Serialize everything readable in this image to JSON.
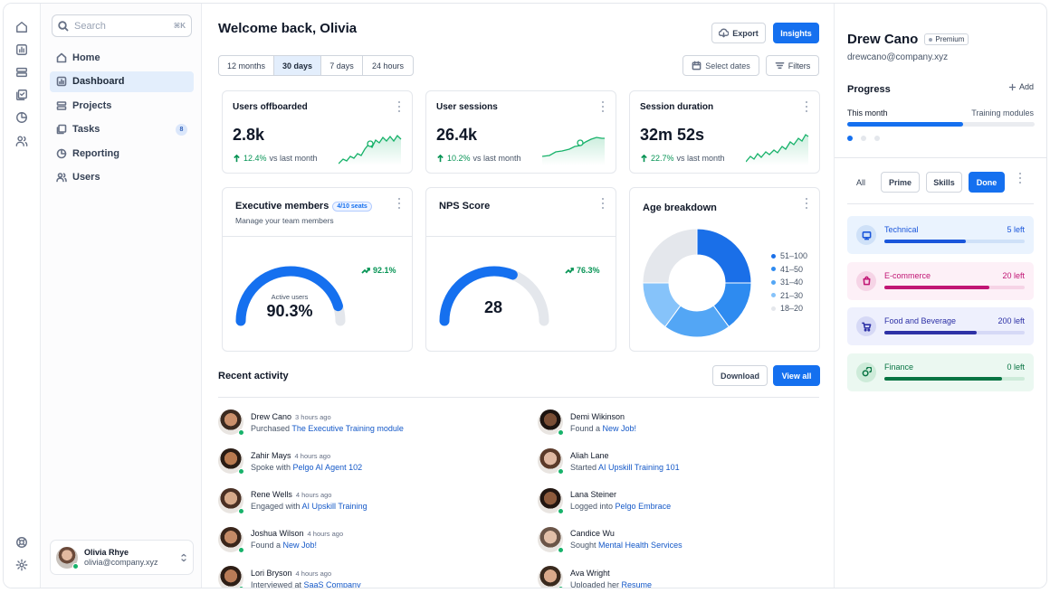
{
  "search": {
    "placeholder": "Search",
    "shortcut": "⌘K"
  },
  "nav": [
    {
      "label": "Home",
      "icon": "home-icon"
    },
    {
      "label": "Dashboard",
      "icon": "bar-chart-icon",
      "active": true
    },
    {
      "label": "Projects",
      "icon": "layers-icon"
    },
    {
      "label": "Tasks",
      "icon": "check-square-icon",
      "count": "8"
    },
    {
      "label": "Reporting",
      "icon": "pie-chart-icon"
    },
    {
      "label": "Users",
      "icon": "users-icon"
    }
  ],
  "current_user": {
    "name": "Olivia Rhye",
    "email": "olivia@company.xyz"
  },
  "header": {
    "title": "Welcome back, Olivia",
    "export_label": "Export",
    "insights_label": "Insights"
  },
  "ranges": [
    "12 months",
    "30 days",
    "7 days",
    "24 hours"
  ],
  "selected_range": "30 days",
  "filters": {
    "dates_label": "Select dates",
    "filters_label": "Filters"
  },
  "stats": [
    {
      "title": "Users offboarded",
      "value": "2.8k",
      "change": "12.4%",
      "vs": "vs last month"
    },
    {
      "title": "User sessions",
      "value": "26.4k",
      "change": "10.2%",
      "vs": "vs last month"
    },
    {
      "title": "Session duration",
      "value": "32m 52s",
      "change": "22.7%",
      "vs": "vs last month"
    }
  ],
  "exec": {
    "title": "Executive members",
    "badge": "4/10 seats",
    "subtitle": "Manage your team members",
    "gauge_label": "Active users",
    "gauge_value": "90.3%",
    "gauge_fraction": 0.903,
    "change": "92.1%"
  },
  "nps": {
    "title": "NPS Score",
    "value": "28",
    "gauge_fraction": 0.62,
    "change": "76.3%"
  },
  "age": {
    "title": "Age breakdown"
  },
  "chart_data": {
    "type": "pie",
    "title": "Age breakdown",
    "categories": [
      "51–100",
      "41–50",
      "31–40",
      "21–30",
      "18–20"
    ],
    "values": [
      25,
      15,
      20,
      15,
      25
    ],
    "colors": [
      "#1a6fe8",
      "#2e8bf0",
      "#53a6f5",
      "#86c3fa",
      "#e4e7ec"
    ]
  },
  "activity": {
    "title": "Recent activity",
    "download_label": "Download",
    "view_all_label": "View all",
    "items": [
      {
        "name": "Drew Cano",
        "time": "3 hours ago",
        "action": "Purchased ",
        "link": "The Executive Training module"
      },
      {
        "name": "Demi Wikinson",
        "time": "",
        "action": "Found a ",
        "link": "New Job!"
      },
      {
        "name": "Zahir Mays",
        "time": "4 hours ago",
        "action": "Spoke with ",
        "link": "Pelgo AI Agent 102"
      },
      {
        "name": "Aliah Lane",
        "time": "",
        "action": "Started ",
        "link": "AI Upskill Training 101"
      },
      {
        "name": "Rene Wells",
        "time": "4 hours ago",
        "action": "Engaged with ",
        "link": "AI Upskill Training"
      },
      {
        "name": "Lana Steiner",
        "time": "",
        "action": "Logged into ",
        "link": "Pelgo Embrace"
      },
      {
        "name": "Joshua Wilson",
        "time": "4 hours ago",
        "action": "Found a ",
        "link": "New Job!"
      },
      {
        "name": "Candice Wu",
        "time": "",
        "action": "Sought ",
        "link": "Mental Health Services"
      },
      {
        "name": "Lori Bryson",
        "time": "4 hours ago",
        "action": "Interviewed at ",
        "link": "SaaS Company"
      },
      {
        "name": "Ava Wright",
        "time": "",
        "action": "Uploaded her ",
        "link": "Resume"
      }
    ]
  },
  "profile": {
    "name": "Drew Cano",
    "tier": "Premium",
    "email": "drewcano@company.xyz"
  },
  "progress": {
    "title": "Progress",
    "add_label": "Add",
    "left_label": "This month",
    "right_label": "Training modules",
    "fraction": 0.62
  },
  "module_tabs": [
    "All",
    "Prime",
    "Skills",
    "Done"
  ],
  "modules": [
    {
      "name": "Technical",
      "left": "5 left",
      "fraction": 0.58,
      "color": "#1a56db",
      "bg": "#eaf3fe",
      "track": "#cfe1f8",
      "icon": "monitor-icon"
    },
    {
      "name": "E-commerce",
      "left": "20 left",
      "fraction": 0.75,
      "color": "#c11574",
      "bg": "#fdf0f7",
      "track": "#f6d4e6",
      "icon": "shopping-bag-icon"
    },
    {
      "name": "Food and Beverage",
      "left": "200 left",
      "fraction": 0.66,
      "color": "#2d31a6",
      "bg": "#eef0fd",
      "track": "#d6d9f6",
      "icon": "cart-icon"
    },
    {
      "name": "Finance",
      "left": "0 left",
      "fraction": 0.84,
      "color": "#087443",
      "bg": "#ebf8f1",
      "track": "#cdebd9",
      "icon": "coins-icon"
    }
  ]
}
